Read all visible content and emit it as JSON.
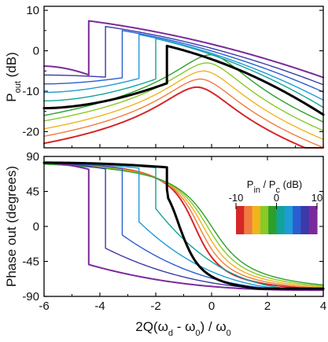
{
  "chart_data": {
    "type": "line",
    "shared_x": {
      "label_text": "2Q(ω",
      "label_parts": [
        "2Q(ω",
        "d",
        " - ω",
        "0",
        ") / ω",
        "0"
      ],
      "xlim": [
        -6,
        4
      ],
      "ticks": [
        -6,
        -4,
        -2,
        0,
        2,
        4
      ],
      "tick_labels": [
        "-6",
        "-4",
        "-2",
        "0",
        "2",
        "4"
      ]
    },
    "panels": [
      {
        "id": "power",
        "ylabel_parts": [
          "P",
          "out",
          " (dB)"
        ],
        "ylim": [
          -24,
          11
        ],
        "yticks": [
          10,
          0,
          -10,
          -20
        ],
        "ytick_labels": [
          "10",
          "0",
          "-10",
          "-20"
        ]
      },
      {
        "id": "phase",
        "ylabel": "Phase out (degrees)",
        "ylim": [
          -90,
          90
        ],
        "yticks": [
          90,
          45,
          0,
          -45,
          -90
        ],
        "ytick_labels": [
          "90",
          "45",
          "0",
          "-45",
          "-90"
        ]
      }
    ],
    "legend": {
      "title_parts": [
        "P",
        "in",
        " / P",
        "c",
        " (dB)"
      ],
      "ticks": [
        "-10",
        "0",
        "10"
      ],
      "colors": [
        "#d62728",
        "#f07b3f",
        "#f0b41c",
        "#8ac926",
        "#2ca02c",
        "#12a39a",
        "#1f9bd6",
        "#2a5fd1",
        "#3b3aa8",
        "#7b2a9b"
      ]
    },
    "series": [
      {
        "color": "#d62728",
        "p_out_max_db": -9,
        "p_out_at_xmin_db": -23.5,
        "p_out_at_xmax_db": -24.5,
        "jump_x": null,
        "stroke_width": 2.0
      },
      {
        "color": "#f07b3f",
        "p_out_max_db": -7,
        "p_out_at_xmin_db": -21.6,
        "p_out_at_xmax_db": -22.9,
        "jump_x": null,
        "stroke_width": 1.4
      },
      {
        "color": "#f0b41c",
        "p_out_max_db": -5,
        "p_out_at_xmin_db": -19.6,
        "p_out_at_xmax_db": -21.2,
        "jump_x": null,
        "stroke_width": 1.4
      },
      {
        "color": "#8ac926",
        "p_out_max_db": -3,
        "p_out_at_xmin_db": -17.5,
        "p_out_at_xmax_db": -19.4,
        "jump_x": null,
        "stroke_width": 1.4
      },
      {
        "color": "#2ca02c",
        "p_out_max_db": -1,
        "p_out_at_xmin_db": -16.0,
        "p_out_at_xmax_db": -17.6,
        "jump_x": null,
        "stroke_width": 1.4
      },
      {
        "color": "#000000",
        "p_out_max_db": 1.2,
        "p_out_at_xmin_db": -14.2,
        "p_out_at_xmax_db": -15.8,
        "jump_x": -1.6,
        "stroke_width": 3.0
      },
      {
        "color": "#12a39a",
        "p_out_max_db": 3,
        "p_out_at_xmin_db": -12.4,
        "p_out_at_xmax_db": -14.0,
        "jump_x": -2.0,
        "stroke_width": 1.4
      },
      {
        "color": "#1f9bd6",
        "p_out_max_db": 4,
        "p_out_at_xmin_db": -10.3,
        "p_out_at_xmax_db": -12.2,
        "jump_x": -2.6,
        "stroke_width": 1.4
      },
      {
        "color": "#2a5fd1",
        "p_out_max_db": 5,
        "p_out_at_xmin_db": -8.2,
        "p_out_at_xmax_db": -10.2,
        "jump_x": -3.2,
        "stroke_width": 1.4
      },
      {
        "color": "#3b3aa8",
        "p_out_max_db": 6,
        "p_out_at_xmin_db": -6.0,
        "p_out_at_xmax_db": -8.4,
        "jump_x": -3.8,
        "stroke_width": 1.4
      },
      {
        "color": "#7b2a9b",
        "p_out_max_db": 7.4,
        "p_out_at_xmin_db": -3.8,
        "p_out_at_xmax_db": -6.6,
        "jump_x": -4.4,
        "stroke_width": 2.0
      }
    ]
  }
}
